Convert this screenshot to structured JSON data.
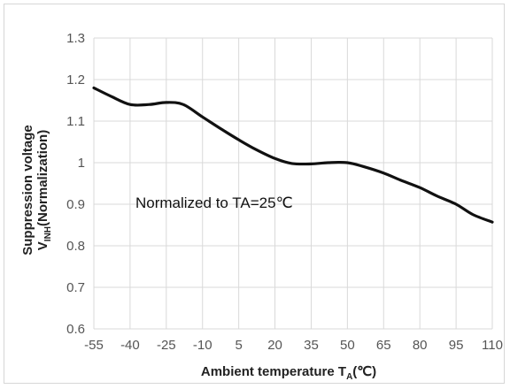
{
  "chart_data": {
    "type": "line",
    "xlabel_prefix": "Ambient temperature T",
    "xlabel_sub": "A",
    "xlabel_suffix": "(℃)",
    "ylabel_line1": "Suppression voltage",
    "ylabel_prefix": "V",
    "ylabel_sub": "INH",
    "ylabel_suffix": "(Normalization)",
    "annotation": "Normalized to TA=25℃",
    "x_ticks": [
      -55,
      -40,
      -25,
      -10,
      5,
      20,
      35,
      50,
      65,
      80,
      95,
      110
    ],
    "y_ticks": [
      "0.6",
      "0.7",
      "0.8",
      "0.9",
      "1",
      "1.1",
      "1.2",
      "1.3"
    ],
    "xlim": [
      -55,
      110
    ],
    "ylim": [
      0.6,
      1.3
    ],
    "grid": true,
    "series": [
      {
        "color": "#111111",
        "x": [
          -55,
          -48,
          -40,
          -32,
          -25,
          -18,
          -10,
          -2,
          5,
          12,
          20,
          27,
          35,
          42,
          50,
          57,
          65,
          72,
          80,
          87,
          95,
          102,
          110
        ],
        "y": [
          1.18,
          1.16,
          1.14,
          1.14,
          1.145,
          1.14,
          1.11,
          1.08,
          1.055,
          1.032,
          1.01,
          0.998,
          0.997,
          1.0,
          1.0,
          0.99,
          0.975,
          0.958,
          0.94,
          0.92,
          0.9,
          0.875,
          0.857
        ]
      }
    ]
  }
}
